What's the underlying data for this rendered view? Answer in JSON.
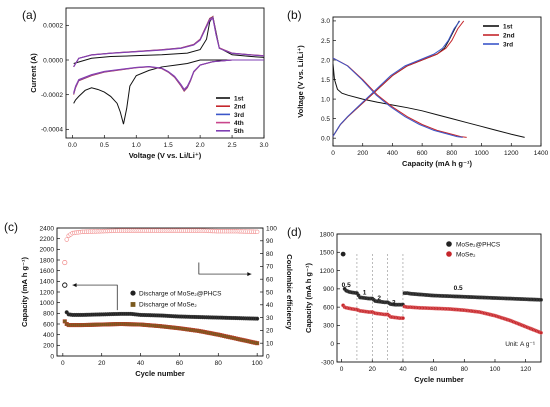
{
  "colors": {
    "black": "#111111",
    "red": "#c5262b",
    "blue": "#3b56c9",
    "magenta": "#c9468c",
    "violet": "#7f3fb3",
    "olive": "#7a5a1f",
    "pink": "#f08a8a"
  },
  "chart_data": [
    {
      "id": "a",
      "panel_label": "(a)",
      "type": "line",
      "xlabel": "Voltage (V vs. Li/Li⁺)",
      "ylabel": "Current (A)",
      "xlim": [
        -0.1,
        3.0
      ],
      "ylim": [
        -0.00045,
        0.0003
      ],
      "xticks": [
        0.0,
        0.5,
        1.0,
        1.5,
        2.0,
        2.5,
        3.0
      ],
      "xtick_labels": [
        "0.0",
        "0.5",
        "1.0",
        "1.5",
        "2.0",
        "2.5",
        "3.0"
      ],
      "yticks": [
        -0.0004,
        -0.0002,
        0.0,
        0.0002
      ],
      "ytick_labels": [
        "-0.0004",
        "-0.0002",
        "0.0000",
        "0.0002"
      ],
      "legend": [
        "1st",
        "2nd",
        "3rd",
        "4th",
        "5th"
      ],
      "legend_position": "right",
      "series": [
        {
          "name": "1st",
          "color": "#111111",
          "x": [
            0.02,
            0.05,
            0.1,
            0.2,
            0.3,
            0.4,
            0.5,
            0.6,
            0.7,
            0.75,
            0.8,
            0.85,
            0.9,
            1.0,
            1.2,
            1.4,
            1.6,
            1.8,
            1.9,
            2.0,
            2.1,
            2.2,
            2.3,
            2.5,
            2.8,
            3.0
          ],
          "y": [
            -0.00025,
            -0.00023,
            -0.00021,
            -0.000175,
            -0.00016,
            -0.00017,
            -0.000185,
            -0.00021,
            -0.00025,
            -0.0003,
            -0.00037,
            -0.00028,
            -0.00015,
            -9e-05,
            -6e-05,
            -4e-05,
            -3e-05,
            -2e-05,
            -1e-05,
            0.0,
            0.0,
            0.0,
            0.0,
            0.0,
            0.0,
            0.0
          ]
        },
        {
          "name": "1st",
          "color": "#111111",
          "x": [
            0.02,
            0.3,
            0.6,
            1.0,
            1.4,
            1.8,
            2.0,
            2.1,
            2.15,
            2.2,
            2.3,
            2.5,
            2.8,
            3.0
          ],
          "y": [
            -2e-05,
            1e-05,
            2e-05,
            2.5e-05,
            3e-05,
            4e-05,
            6e-05,
            0.00012,
            0.00022,
            0.00025,
            7e-05,
            3e-05,
            2e-05,
            1.5e-05
          ]
        },
        {
          "name": "2nd",
          "color": "#c5262b",
          "x": [
            0.02,
            0.05,
            0.1,
            0.3,
            0.5,
            0.7,
            1.0,
            1.2,
            1.4,
            1.5,
            1.6,
            1.7,
            1.75,
            1.8,
            1.85,
            1.9,
            2.0,
            2.2,
            2.5,
            2.8,
            3.0
          ],
          "y": [
            -0.0002,
            -0.00016,
            -0.00012,
            -9e-05,
            -7e-05,
            -6e-05,
            -4.5e-05,
            -4e-05,
            -5e-05,
            -7e-05,
            -0.0001,
            -0.00015,
            -0.00018,
            -0.00016,
            -0.00012,
            -7e-05,
            -3e-05,
            -1e-05,
            0.0,
            0.0,
            0.0
          ]
        },
        {
          "name": "2nd",
          "color": "#c5262b",
          "x": [
            0.02,
            0.1,
            0.3,
            0.6,
            1.0,
            1.4,
            1.7,
            1.9,
            2.0,
            2.05,
            2.1,
            2.15,
            2.2,
            2.25,
            2.3,
            2.5,
            2.8,
            3.0
          ],
          "y": [
            -4e-05,
            1e-05,
            3e-05,
            4e-05,
            5e-05,
            6e-05,
            7e-05,
            9e-05,
            0.00012,
            0.00016,
            0.0002,
            0.00024,
            0.00025,
            0.00015,
            7e-05,
            4e-05,
            3e-05,
            2.5e-05
          ]
        }
      ]
    },
    {
      "id": "b",
      "panel_label": "(b)",
      "type": "line",
      "xlabel": "Capacity (mA h g⁻¹)",
      "ylabel": "Voltage (V vs. Li/Li⁺)",
      "xlim": [
        0,
        1400
      ],
      "ylim": [
        -0.2,
        3.1
      ],
      "xticks": [
        0,
        200,
        400,
        600,
        800,
        1000,
        1200,
        1400
      ],
      "xtick_labels": [
        "0",
        "200",
        "400",
        "600",
        "800",
        "1000",
        "1200",
        "1400"
      ],
      "yticks": [
        0.0,
        0.5,
        1.0,
        1.5,
        2.0,
        2.5,
        3.0
      ],
      "ytick_labels": [
        "0.0",
        "0.5",
        "1.0",
        "1.5",
        "2.0",
        "2.5",
        "3.0"
      ],
      "legend": [
        "1st",
        "2nd",
        "3rd"
      ],
      "legend_position": "top-right",
      "series": [
        {
          "name": "1st",
          "color": "#111111",
          "x": [
            0,
            10,
            30,
            60,
            100,
            200,
            300,
            400,
            500,
            600,
            700,
            800,
            900,
            1000,
            1100,
            1200,
            1290
          ],
          "y": [
            1.9,
            1.5,
            1.25,
            1.15,
            1.1,
            1.0,
            0.92,
            0.85,
            0.78,
            0.7,
            0.6,
            0.5,
            0.4,
            0.3,
            0.2,
            0.1,
            0.02
          ]
        },
        {
          "name": "1st",
          "color": "#111111",
          "x": [
            0,
            50,
            100,
            200,
            300,
            400,
            500,
            600,
            700,
            750,
            780,
            820,
            850
          ],
          "y": [
            0.05,
            0.35,
            0.55,
            0.9,
            1.25,
            1.6,
            1.85,
            2.0,
            2.15,
            2.3,
            2.5,
            2.8,
            3.0
          ]
        },
        {
          "name": "2nd",
          "color": "#c5262b",
          "x": [
            0,
            50,
            100,
            200,
            300,
            400,
            500,
            600,
            700,
            800,
            860,
            900
          ],
          "y": [
            2.05,
            1.95,
            1.85,
            1.5,
            1.1,
            0.8,
            0.55,
            0.35,
            0.2,
            0.1,
            0.04,
            0.02
          ]
        },
        {
          "name": "2nd",
          "color": "#c5262b",
          "x": [
            0,
            50,
            100,
            200,
            300,
            400,
            500,
            600,
            700,
            760,
            800,
            840,
            880
          ],
          "y": [
            0.05,
            0.35,
            0.55,
            0.9,
            1.25,
            1.6,
            1.85,
            2.0,
            2.15,
            2.3,
            2.5,
            2.8,
            3.0
          ]
        }
      ]
    },
    {
      "id": "c",
      "panel_label": "(c)",
      "type": "scatter",
      "xlabel": "Cycle number",
      "ylabel": "Capacity (mA h g⁻¹)",
      "y2label": "Coulombic efficiency",
      "xlim": [
        -3,
        103
      ],
      "ylim": [
        0,
        2400
      ],
      "y2lim": [
        0,
        100
      ],
      "xticks": [
        0,
        20,
        40,
        60,
        80,
        100
      ],
      "xtick_labels": [
        "0",
        "20",
        "40",
        "60",
        "80",
        "100"
      ],
      "yticks": [
        0,
        200,
        400,
        600,
        800,
        1000,
        1200,
        1400,
        1600,
        1800,
        2000,
        2200,
        2400
      ],
      "ytick_labels": [
        "0",
        "200",
        "400",
        "600",
        "800",
        "1000",
        "1200",
        "1400",
        "1600",
        "1800",
        "2000",
        "2200",
        "2400"
      ],
      "y2ticks": [
        0,
        10,
        20,
        30,
        40,
        50,
        60,
        70,
        80,
        90,
        100
      ],
      "y2tick_labels": [
        "0",
        "10",
        "20",
        "30",
        "40",
        "50",
        "60",
        "70",
        "80",
        "90",
        "100"
      ],
      "legend": [
        "Discharge of MoSe₂@PHCS",
        "Discharge of MoSe₂"
      ],
      "legend_position": "center-right",
      "series": [
        {
          "name": "Discharge of MoSe₂@PHCS",
          "color": "#111111",
          "x": [
            1,
            2,
            3,
            5,
            10,
            20,
            30,
            35,
            40,
            50,
            60,
            70,
            80,
            90,
            100
          ],
          "y": [
            1330,
            820,
            780,
            770,
            770,
            780,
            790,
            790,
            770,
            760,
            740,
            730,
            720,
            710,
            700
          ]
        },
        {
          "name": "Discharge of MoSe₂",
          "color": "#7a5a1f",
          "x": [
            1,
            2,
            3,
            5,
            10,
            20,
            30,
            40,
            50,
            60,
            70,
            80,
            90,
            100
          ],
          "y": [
            650,
            600,
            580,
            580,
            580,
            590,
            600,
            590,
            560,
            520,
            470,
            400,
            320,
            240
          ]
        },
        {
          "name": "Coulombic efficiency",
          "color": "#c5262b",
          "axis": "right",
          "x": [
            1,
            2,
            3,
            5,
            10,
            20,
            30,
            40,
            50,
            60,
            70,
            80,
            90,
            100
          ],
          "y": [
            73,
            91,
            94,
            96,
            97,
            97.5,
            98,
            98,
            98,
            98,
            98,
            97.5,
            97.5,
            97
          ]
        }
      ]
    },
    {
      "id": "d",
      "panel_label": "(d)",
      "type": "scatter",
      "xlabel": "Cycle number",
      "ylabel": "Capacity (mA h g⁻¹)",
      "xlim": [
        -3,
        130
      ],
      "ylim": [
        -300,
        1800
      ],
      "xticks": [
        0,
        20,
        40,
        60,
        80,
        100,
        120
      ],
      "xtick_labels": [
        "0",
        "20",
        "40",
        "60",
        "80",
        "100",
        "120"
      ],
      "yticks": [
        -300,
        0,
        300,
        600,
        900,
        1200,
        1500,
        1800
      ],
      "ytick_labels": [
        "-300",
        "0",
        "300",
        "600",
        "900",
        "1200",
        "1500",
        "1800"
      ],
      "legend": [
        "MoSe₂@PHCS",
        "MoSe₂"
      ],
      "legend_position": "top-right",
      "rate_labels": [
        "0.5",
        "1",
        "2",
        "3",
        "0.5"
      ],
      "rate_label_x": [
        3,
        15,
        24.5,
        34,
        76
      ],
      "rate_dividers": [
        10,
        20,
        30,
        40
      ],
      "unit_note": "Unit: A g⁻¹",
      "series": [
        {
          "name": "MoSe₂@PHCS",
          "color": "#111111",
          "x": [
            1,
            2,
            3,
            5,
            7,
            10,
            12,
            15,
            18,
            20,
            22,
            25,
            28,
            30,
            32,
            35,
            38,
            40,
            41,
            43,
            45,
            50,
            60,
            70,
            80,
            90,
            100,
            110,
            120,
            130
          ],
          "y": [
            1470,
            900,
            870,
            850,
            840,
            830,
            760,
            750,
            740,
            740,
            700,
            690,
            680,
            680,
            650,
            640,
            640,
            640,
            830,
            830,
            820,
            810,
            790,
            780,
            770,
            760,
            750,
            740,
            730,
            720
          ]
        },
        {
          "name": "MoSe₂",
          "color": "#c5262b",
          "x": [
            1,
            2,
            3,
            5,
            7,
            10,
            12,
            15,
            18,
            20,
            22,
            25,
            28,
            30,
            32,
            35,
            38,
            40,
            41,
            43,
            45,
            50,
            60,
            70,
            80,
            90,
            100,
            110,
            120,
            130
          ],
          "y": [
            630,
            600,
            590,
            580,
            570,
            560,
            540,
            530,
            520,
            520,
            500,
            490,
            480,
            480,
            440,
            430,
            420,
            420,
            610,
            600,
            600,
            590,
            580,
            570,
            550,
            520,
            460,
            380,
            280,
            180
          ]
        }
      ]
    }
  ]
}
